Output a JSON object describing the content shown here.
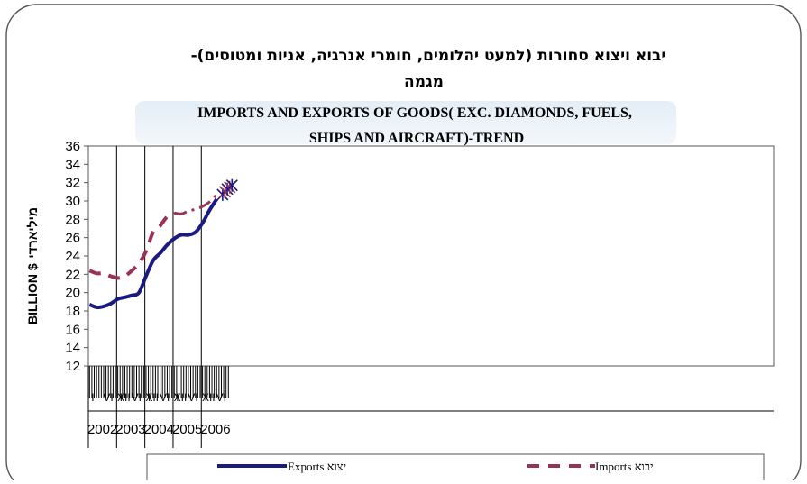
{
  "title": {
    "hebrew_line1": "יבוא ויצוא סחורות (למעט יהלומים, חומרי אנרגיה, אניות ומטוסים)-",
    "hebrew_line2": "מגמה",
    "english_line1": "IMPORTS AND EXPORTS OF GOODS( EXC. DIAMONDS, FUELS,",
    "english_line2": "SHIPS AND AIRCRAFT)-TREND"
  },
  "ylabel": {
    "english": "BILLION $",
    "hebrew": "מיליארדי"
  },
  "month_labels": [
    "I",
    "VI",
    "XII"
  ],
  "legend": {
    "exports": "Exports  יצוא",
    "imports": "Imports  יבוא"
  },
  "colors": {
    "exports": "#1a1a80",
    "imports": "#993355",
    "frame": "#555555",
    "background": "#ffffff"
  },
  "chart_data": {
    "type": "line",
    "title": "IMPORTS AND EXPORTS OF GOODS( EXC. DIAMONDS, FUELS, SHIPS AND AIRCRAFT)-TREND",
    "ylabel": "BILLION $",
    "ylim": [
      12,
      36
    ],
    "yticks": [
      12,
      14,
      16,
      18,
      20,
      22,
      24,
      26,
      28,
      30,
      32,
      34,
      36
    ],
    "years": [
      "2002",
      "2003",
      "2004",
      "2005",
      "2006"
    ],
    "grid": "vertical lines at year boundaries",
    "legend_position": "bottom",
    "series": [
      {
        "name": "Exports  יצוא",
        "style": "solid",
        "points": [
          {
            "x": "2002-01",
            "y": 18.7
          },
          {
            "x": "2002-04",
            "y": 18.4
          },
          {
            "x": "2002-07",
            "y": 18.5
          },
          {
            "x": "2002-10",
            "y": 18.8
          },
          {
            "x": "2003-01",
            "y": 19.3
          },
          {
            "x": "2003-04",
            "y": 19.5
          },
          {
            "x": "2003-07",
            "y": 19.7
          },
          {
            "x": "2003-10",
            "y": 20.0
          },
          {
            "x": "2004-01",
            "y": 21.8
          },
          {
            "x": "2004-04",
            "y": 23.5
          },
          {
            "x": "2004-07",
            "y": 24.3
          },
          {
            "x": "2004-10",
            "y": 25.2
          },
          {
            "x": "2005-01",
            "y": 25.9
          },
          {
            "x": "2005-04",
            "y": 26.3
          },
          {
            "x": "2005-07",
            "y": 26.3
          },
          {
            "x": "2005-10",
            "y": 26.6
          },
          {
            "x": "2006-01",
            "y": 27.6
          },
          {
            "x": "2006-04",
            "y": 29.0
          },
          {
            "x": "2006-07",
            "y": 30.2
          }
        ]
      },
      {
        "name": "Imports  יבוא",
        "style": "dashed",
        "points": [
          {
            "x": "2002-01",
            "y": 22.4
          },
          {
            "x": "2002-04",
            "y": 22.1
          },
          {
            "x": "2002-07",
            "y": 22.1
          },
          {
            "x": "2002-10",
            "y": 21.8
          },
          {
            "x": "2003-01",
            "y": 21.6
          },
          {
            "x": "2003-04",
            "y": 21.8
          },
          {
            "x": "2003-07",
            "y": 22.4
          },
          {
            "x": "2003-10",
            "y": 23.2
          },
          {
            "x": "2004-01",
            "y": 24.5
          },
          {
            "x": "2004-04",
            "y": 26.6
          },
          {
            "x": "2004-07",
            "y": 27.3
          },
          {
            "x": "2004-10",
            "y": 28.3
          },
          {
            "x": "2005-01",
            "y": 28.7
          }
        ]
      },
      {
        "name": "Imports  יבוא",
        "style": "dash-dot",
        "points": [
          {
            "x": "2005-01",
            "y": 28.7
          },
          {
            "x": "2005-04",
            "y": 28.6
          },
          {
            "x": "2005-07",
            "y": 28.9
          },
          {
            "x": "2005-10",
            "y": 29.1
          },
          {
            "x": "2006-01",
            "y": 29.4
          },
          {
            "x": "2006-04",
            "y": 29.9
          },
          {
            "x": "2006-07",
            "y": 30.7
          }
        ]
      },
      {
        "name": "",
        "style": "markers",
        "points": [
          {
            "x": "2006-08",
            "y": 30.7
          },
          {
            "x": "2006-09",
            "y": 31.0
          },
          {
            "x": "2006-10",
            "y": 31.3
          },
          {
            "x": "2006-11",
            "y": 31.5
          },
          {
            "x": "2006-12",
            "y": 31.7
          }
        ]
      }
    ]
  }
}
